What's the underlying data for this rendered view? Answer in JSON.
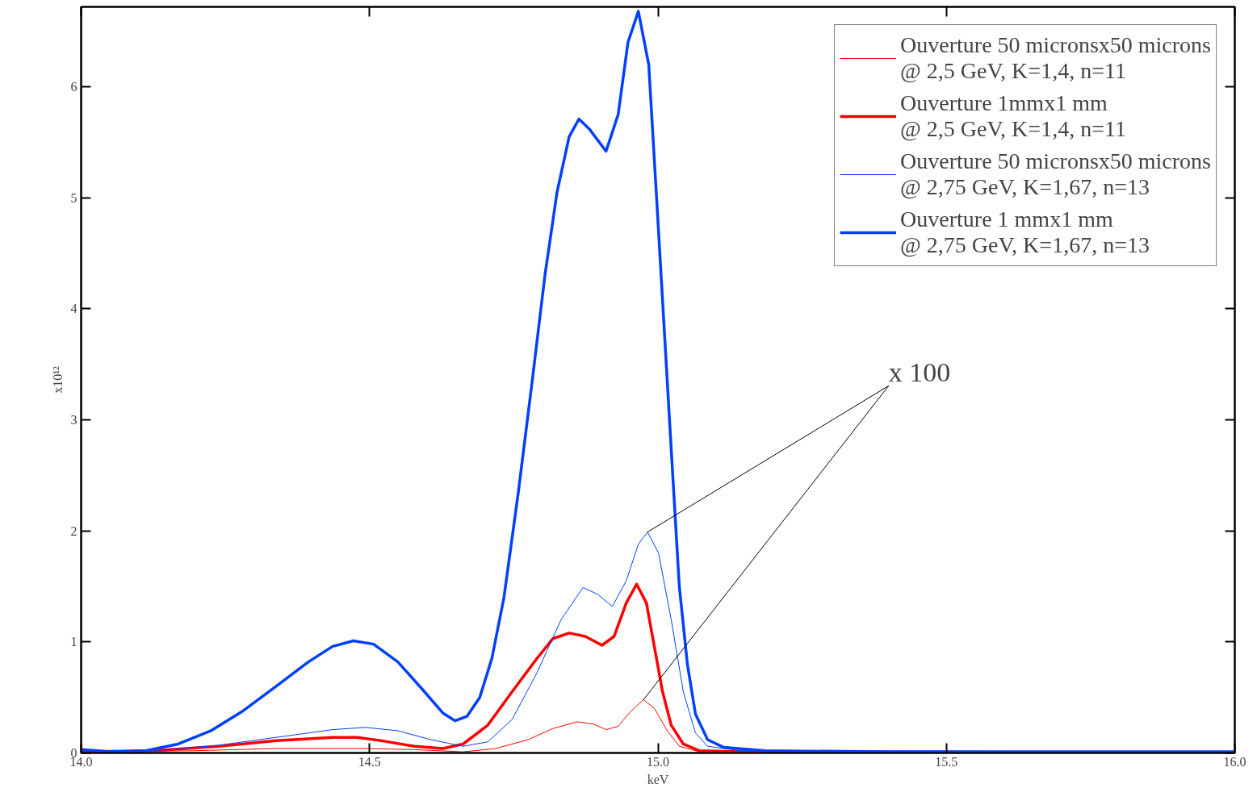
{
  "chart_data": {
    "type": "line",
    "xlabel": "keV",
    "ylabel": "x10¹²",
    "xlim": [
      14.0,
      16.0
    ],
    "ylim": [
      0,
      6.72
    ],
    "xticks": [
      {
        "value": 14.0,
        "label": "14.0"
      },
      {
        "value": 14.5,
        "label": "14.5"
      },
      {
        "value": 15.0,
        "label": "15.0"
      },
      {
        "value": 15.5,
        "label": "15.5"
      },
      {
        "value": 16.0,
        "label": "16.0"
      }
    ],
    "yticks": [
      0,
      1,
      2,
      3,
      4,
      5,
      6
    ],
    "grid": false,
    "legend": "top right",
    "annotations": [
      {
        "text": "x 100",
        "x": 14.982,
        "y": 1.99
      }
    ],
    "series": [
      {
        "name": "Ouverture 50 micronsx50 microns\n@ 2,5 GeV, K=1,4, n=11",
        "color": "#ff0000",
        "x": [
          14.0,
          14.196,
          14.338,
          14.493,
          14.578,
          14.662,
          14.719,
          14.775,
          14.818,
          14.86,
          14.888,
          14.91,
          14.931,
          14.952,
          14.975,
          14.994,
          15.016,
          15.037,
          15.072,
          16.0
        ],
        "values": [
          0.01,
          0.02,
          0.04,
          0.04,
          0.03,
          0.01,
          0.04,
          0.12,
          0.22,
          0.28,
          0.26,
          0.21,
          0.24,
          0.37,
          0.48,
          0.4,
          0.2,
          0.06,
          0.01,
          0.0
        ]
      },
      {
        "name": "Ouverture 1mmx1 mm\n@ 2,5 GeV, K=1,4, n=11",
        "color": "#ff0000",
        "x": [
          14.0,
          14.126,
          14.239,
          14.338,
          14.436,
          14.479,
          14.521,
          14.578,
          14.627,
          14.662,
          14.705,
          14.747,
          14.79,
          14.818,
          14.846,
          14.874,
          14.903,
          14.924,
          14.945,
          14.963,
          14.98,
          14.994,
          15.008,
          15.023,
          15.044,
          15.072,
          15.143,
          16.0
        ],
        "values": [
          0.01,
          0.02,
          0.06,
          0.11,
          0.14,
          0.14,
          0.11,
          0.06,
          0.04,
          0.08,
          0.25,
          0.55,
          0.85,
          1.03,
          1.08,
          1.05,
          0.97,
          1.05,
          1.35,
          1.52,
          1.35,
          0.95,
          0.55,
          0.25,
          0.08,
          0.02,
          0.01,
          0.0
        ]
      },
      {
        "name": "Ouverture 50 micronsx50 microns\n@ 2,75 GeV, K=1,67, n=13",
        "color": "#0040ff",
        "x": [
          14.0,
          14.126,
          14.239,
          14.338,
          14.436,
          14.493,
          14.549,
          14.606,
          14.662,
          14.705,
          14.747,
          14.79,
          14.832,
          14.87,
          14.895,
          14.921,
          14.945,
          14.966,
          14.982,
          15.001,
          15.023,
          15.044,
          15.065,
          15.086,
          15.143,
          16.0
        ],
        "values": [
          0.02,
          0.02,
          0.07,
          0.14,
          0.21,
          0.23,
          0.2,
          0.12,
          0.06,
          0.1,
          0.3,
          0.72,
          1.2,
          1.49,
          1.43,
          1.32,
          1.55,
          1.88,
          1.99,
          1.8,
          1.2,
          0.55,
          0.18,
          0.06,
          0.02,
          0.01
        ]
      },
      {
        "name": "Ouverture 1 mmx1 mm\n@ 2,75 GeV, K=1,67, n=13",
        "color": "#0040ff",
        "x": [
          14.0,
          14.055,
          14.112,
          14.168,
          14.225,
          14.281,
          14.338,
          14.394,
          14.436,
          14.472,
          14.507,
          14.549,
          14.592,
          14.627,
          14.648,
          14.669,
          14.691,
          14.712,
          14.733,
          14.758,
          14.782,
          14.804,
          14.825,
          14.846,
          14.863,
          14.881,
          14.91,
          14.931,
          14.948,
          14.966,
          14.984,
          15.001,
          15.02,
          15.037,
          15.051,
          15.065,
          15.086,
          15.114,
          15.185,
          15.397,
          16.0
        ],
        "values": [
          0.03,
          0.01,
          0.02,
          0.08,
          0.2,
          0.38,
          0.6,
          0.82,
          0.96,
          1.01,
          0.98,
          0.82,
          0.57,
          0.36,
          0.29,
          0.33,
          0.5,
          0.85,
          1.4,
          2.35,
          3.35,
          4.3,
          5.05,
          5.55,
          5.71,
          5.62,
          5.42,
          5.75,
          6.4,
          6.68,
          6.2,
          4.7,
          3.0,
          1.5,
          0.8,
          0.35,
          0.12,
          0.05,
          0.02,
          0.01,
          0.01
        ]
      }
    ]
  }
}
